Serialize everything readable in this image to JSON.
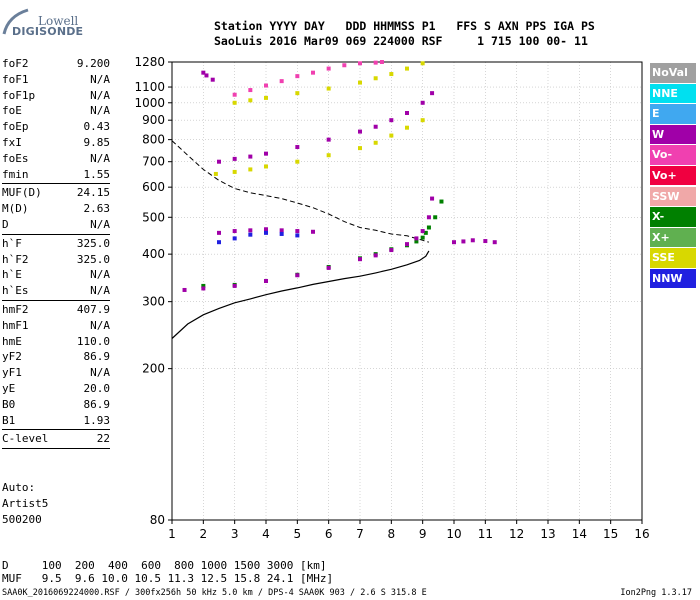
{
  "logo": {
    "line1": "Lowell",
    "line2": "DIGISONDE"
  },
  "header": {
    "line1": "Station YYYY DAY   DDD HHMMSS P1   FFS S AXN PPS IGA PS",
    "line2": "SaoLuis 2016 Mar09 069 224000 RSF     1 715 100 00- 11"
  },
  "params": {
    "group1": [
      {
        "name": "foF2",
        "value": "9.200"
      },
      {
        "name": "foF1",
        "value": "N/A"
      },
      {
        "name": "foF1p",
        "value": "N/A"
      },
      {
        "name": "foE",
        "value": "N/A"
      },
      {
        "name": "foEp",
        "value": "0.43"
      },
      {
        "name": "fxI",
        "value": "9.85"
      },
      {
        "name": "foEs",
        "value": "N/A"
      },
      {
        "name": "fmin",
        "value": "1.55"
      }
    ],
    "group2": [
      {
        "name": "MUF(D)",
        "value": "24.15"
      },
      {
        "name": "M(D)",
        "value": "2.63"
      },
      {
        "name": "D",
        "value": "N/A"
      }
    ],
    "group3": [
      {
        "name": "h`F",
        "value": "325.0"
      },
      {
        "name": "h`F2",
        "value": "325.0"
      },
      {
        "name": "h`E",
        "value": "N/A"
      },
      {
        "name": "h`Es",
        "value": "N/A"
      }
    ],
    "group4": [
      {
        "name": "hmF2",
        "value": "407.9"
      },
      {
        "name": "hmF1",
        "value": "N/A"
      },
      {
        "name": "hmE",
        "value": "110.0"
      },
      {
        "name": "yF2",
        "value": "86.9"
      },
      {
        "name": "yF1",
        "value": "N/A"
      },
      {
        "name": "yE",
        "value": "20.0"
      },
      {
        "name": "B0",
        "value": "86.9"
      },
      {
        "name": "B1",
        "value": "1.93"
      }
    ],
    "group5": [
      {
        "name": "C-level",
        "value": "22"
      }
    ]
  },
  "auto": {
    "line1": "Auto:",
    "line2": "Artist5",
    "line3": "500200"
  },
  "legend": [
    {
      "label": "NoVal",
      "color": "#a0a0a0"
    },
    {
      "label": "NNE",
      "color": "#00e0f0"
    },
    {
      "label": "E",
      "color": "#40a8f0"
    },
    {
      "label": "W",
      "color": "#a000a8"
    },
    {
      "label": "Vo-",
      "color": "#f040b0"
    },
    {
      "label": "Vo+",
      "color": "#f00040"
    },
    {
      "label": "SSW",
      "color": "#f0a8a8"
    },
    {
      "label": "X-",
      "color": "#008000"
    },
    {
      "label": "X+",
      "color": "#60b050"
    },
    {
      "label": "SSE",
      "color": "#d8d800"
    },
    {
      "label": "NNW",
      "color": "#2020e0"
    }
  ],
  "dm_table": {
    "line1": "D     100  200  400  600  800 1000 1500 3000 [km]",
    "line2": "MUF   9.5  9.6 10.0 10.5 11.3 12.5 15.8 24.1 [MHz]"
  },
  "footer": {
    "left": "SAA0K_2016069224000.RSF / 300fx256h 50 kHz 5.0 km / DPS-4 SAA0K 903 / 2.6 S 315.8 E",
    "right": "Ion2Png 1.3.17"
  },
  "chart_data": {
    "type": "scatter",
    "x_ticks": [
      1,
      2,
      3,
      4,
      5,
      6,
      7,
      8,
      9,
      10,
      11,
      12,
      13,
      14,
      15,
      16
    ],
    "y_ticks": [
      80,
      200,
      300,
      400,
      500,
      600,
      700,
      800,
      900,
      1000,
      1100,
      1280
    ],
    "xlim": [
      1,
      16
    ],
    "ylim": [
      80,
      1280
    ],
    "grid": true,
    "y_scale": "log",
    "legend_position": "right",
    "profile": {
      "x": [
        1.0,
        1.5,
        2.0,
        2.5,
        3.0,
        3.5,
        4.0,
        4.5,
        5.0,
        5.5,
        6.0,
        6.5,
        7.0,
        7.5,
        8.0,
        8.5,
        8.9,
        9.1,
        9.2
      ],
      "y": [
        240,
        262,
        277,
        288,
        298,
        305,
        313,
        320,
        326,
        333,
        339,
        345,
        350,
        357,
        365,
        375,
        385,
        395,
        408
      ]
    },
    "muf_curve": {
      "x": [
        1.0,
        1.5,
        2.0,
        2.5,
        3.0,
        3.5,
        4.0,
        4.5,
        5.0,
        5.5,
        6.0,
        6.5,
        7.0,
        7.5,
        8.0,
        8.5,
        9.0,
        9.2
      ],
      "y": [
        795,
        728,
        668,
        625,
        595,
        580,
        570,
        560,
        545,
        530,
        510,
        487,
        470,
        462,
        452,
        447,
        435,
        430
      ]
    },
    "traces": [
      {
        "series": "X-",
        "x": [
          2.0,
          3.0,
          4.0,
          5.0,
          6.0,
          7.0,
          7.5,
          8.0,
          8.5,
          8.8,
          9.0,
          9.1,
          9.2,
          9.4,
          9.6
        ],
        "y": [
          330,
          332,
          340,
          353,
          370,
          390,
          400,
          412,
          422,
          432,
          442,
          455,
          470,
          500,
          550
        ]
      },
      {
        "series": "W",
        "x": [
          1.4,
          2.0,
          3.0,
          4.0,
          5.0,
          6.0,
          7.0,
          7.5,
          8.0,
          8.5,
          8.8,
          9.0,
          9.2,
          9.3
        ],
        "y": [
          322,
          325,
          330,
          340,
          352,
          368,
          388,
          397,
          410,
          425,
          440,
          460,
          500,
          560
        ]
      },
      {
        "series": "SSE",
        "x": [
          2.4,
          3.0,
          3.5,
          4.0,
          5.0,
          6.0,
          7.0,
          7.5,
          8.0,
          8.5,
          9.0
        ],
        "y": [
          650,
          658,
          668,
          680,
          700,
          728,
          760,
          785,
          820,
          860,
          900
        ]
      },
      {
        "series": "W",
        "x": [
          2.5,
          3.0,
          3.5,
          4.0,
          5.0,
          6.0,
          7.0,
          7.5,
          8.0,
          8.5,
          9.0,
          9.3
        ],
        "y": [
          700,
          712,
          722,
          735,
          765,
          800,
          840,
          865,
          900,
          940,
          1000,
          1060
        ]
      },
      {
        "series": "Vo-",
        "x": [
          3.0,
          3.5,
          4.0,
          4.5,
          5.0,
          5.5,
          6.0,
          6.5,
          7.0,
          7.5,
          7.7
        ],
        "y": [
          1050,
          1080,
          1110,
          1140,
          1175,
          1200,
          1230,
          1255,
          1270,
          1275,
          1280
        ]
      },
      {
        "series": "SSE",
        "x": [
          3.0,
          3.5,
          4.0,
          5.0,
          6.0,
          7.0,
          7.5,
          8.0,
          8.5,
          9.0
        ],
        "y": [
          1000,
          1015,
          1030,
          1060,
          1090,
          1130,
          1160,
          1190,
          1230,
          1270
        ]
      },
      {
        "series": "W",
        "x": [
          2.5,
          3.0,
          3.5,
          4.0,
          4.5,
          5.0,
          5.5
        ],
        "y": [
          455,
          460,
          462,
          465,
          462,
          460,
          458
        ]
      },
      {
        "series": "NNW",
        "x": [
          2.5,
          3.0,
          3.5,
          4.0,
          4.5,
          5.0
        ],
        "y": [
          430,
          440,
          450,
          455,
          452,
          448
        ]
      },
      {
        "series": "W",
        "x": [
          10.0,
          10.3,
          10.6,
          11.0,
          11.3
        ],
        "y": [
          430,
          432,
          435,
          433,
          430
        ]
      },
      {
        "series": "W",
        "x": [
          2.0,
          2.1,
          2.3
        ],
        "y": [
          1200,
          1180,
          1150
        ]
      }
    ]
  }
}
